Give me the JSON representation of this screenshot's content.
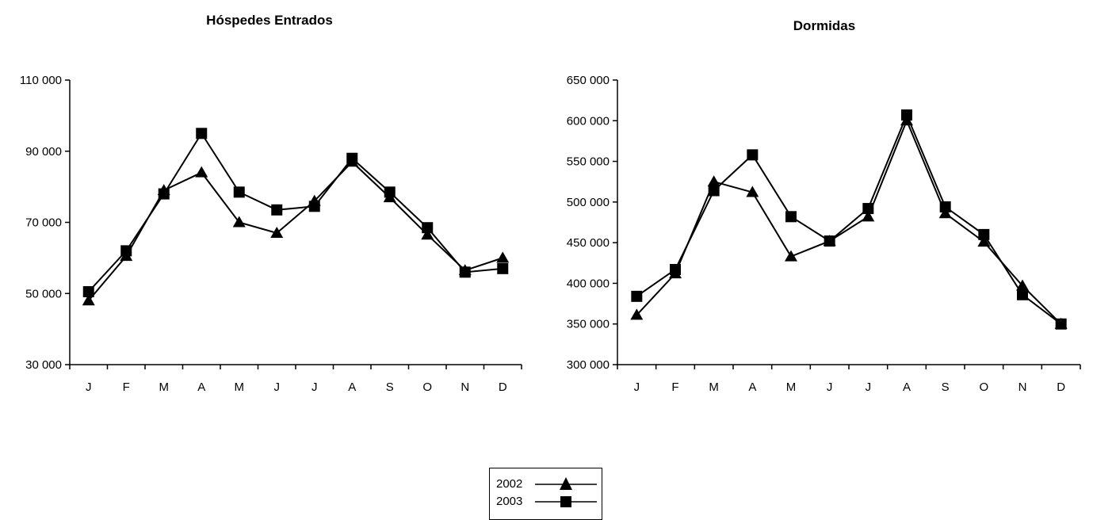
{
  "chart_data": [
    {
      "type": "line",
      "title": "Hóspedes Entrados",
      "categories": [
        "J",
        "F",
        "M",
        "A",
        "M",
        "J",
        "J",
        "A",
        "S",
        "O",
        "N",
        "D"
      ],
      "ylim": [
        30000,
        110000
      ],
      "yticks": [
        "30 000",
        "50 000",
        "70 000",
        "90 000",
        "110 000"
      ],
      "ytick_values": [
        30000,
        50000,
        70000,
        90000,
        110000
      ],
      "series": [
        {
          "name": "2002",
          "marker": "triangle",
          "values": [
            48000,
            60500,
            79000,
            84000,
            70000,
            67000,
            76000,
            87000,
            77000,
            66500,
            56500,
            60000
          ]
        },
        {
          "name": "2003",
          "marker": "square",
          "values": [
            50500,
            62000,
            78000,
            95000,
            78500,
            73500,
            74500,
            88000,
            78500,
            68500,
            56000,
            57000
          ]
        }
      ],
      "grid": false
    },
    {
      "type": "line",
      "title": "Dormidas",
      "categories": [
        "J",
        "F",
        "M",
        "A",
        "M",
        "J",
        "J",
        "A",
        "S",
        "O",
        "N",
        "D"
      ],
      "ylim": [
        300000,
        650000
      ],
      "yticks": [
        "300 000",
        "350 000",
        "400 000",
        "450 000",
        "500 000",
        "550 000",
        "600 000",
        "650 000"
      ],
      "ytick_values": [
        300000,
        350000,
        400000,
        450000,
        500000,
        550000,
        600000,
        650000
      ],
      "series": [
        {
          "name": "2002",
          "marker": "triangle",
          "values": [
            361000,
            412000,
            525000,
            512000,
            433000,
            452000,
            482000,
            600000,
            486000,
            451000,
            397000,
            350000
          ]
        },
        {
          "name": "2003",
          "marker": "square",
          "values": [
            384000,
            417000,
            514000,
            558000,
            482000,
            452000,
            492000,
            607000,
            494000,
            460000,
            386000,
            350000
          ]
        }
      ],
      "grid": false
    }
  ],
  "legend": {
    "position": "bottom-center",
    "items": [
      {
        "label": "2002",
        "marker": "triangle"
      },
      {
        "label": "2003",
        "marker": "square"
      }
    ]
  },
  "colors": {
    "line": "#000000",
    "background": "#ffffff"
  }
}
